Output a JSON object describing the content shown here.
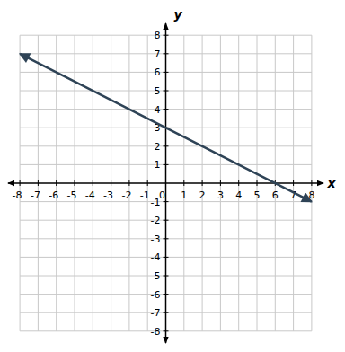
{
  "chart_data": {
    "type": "line",
    "x_label": "x",
    "y_label": "y",
    "x": [
      -8,
      8
    ],
    "values": [
      7,
      -1
    ],
    "color": "#2e4356",
    "marker": "arrow",
    "xlim": [
      -8.5,
      8.5
    ],
    "ylim": [
      -8.5,
      8.5
    ],
    "xticks": [
      -8,
      -7,
      -6,
      -5,
      -4,
      -3,
      -2,
      -1,
      0,
      1,
      2,
      3,
      4,
      5,
      6,
      7,
      8
    ],
    "yticks": [
      -8,
      -7,
      -6,
      -5,
      -4,
      -3,
      -2,
      -1,
      1,
      2,
      3,
      4,
      5,
      6,
      7,
      8
    ],
    "grid": true
  }
}
